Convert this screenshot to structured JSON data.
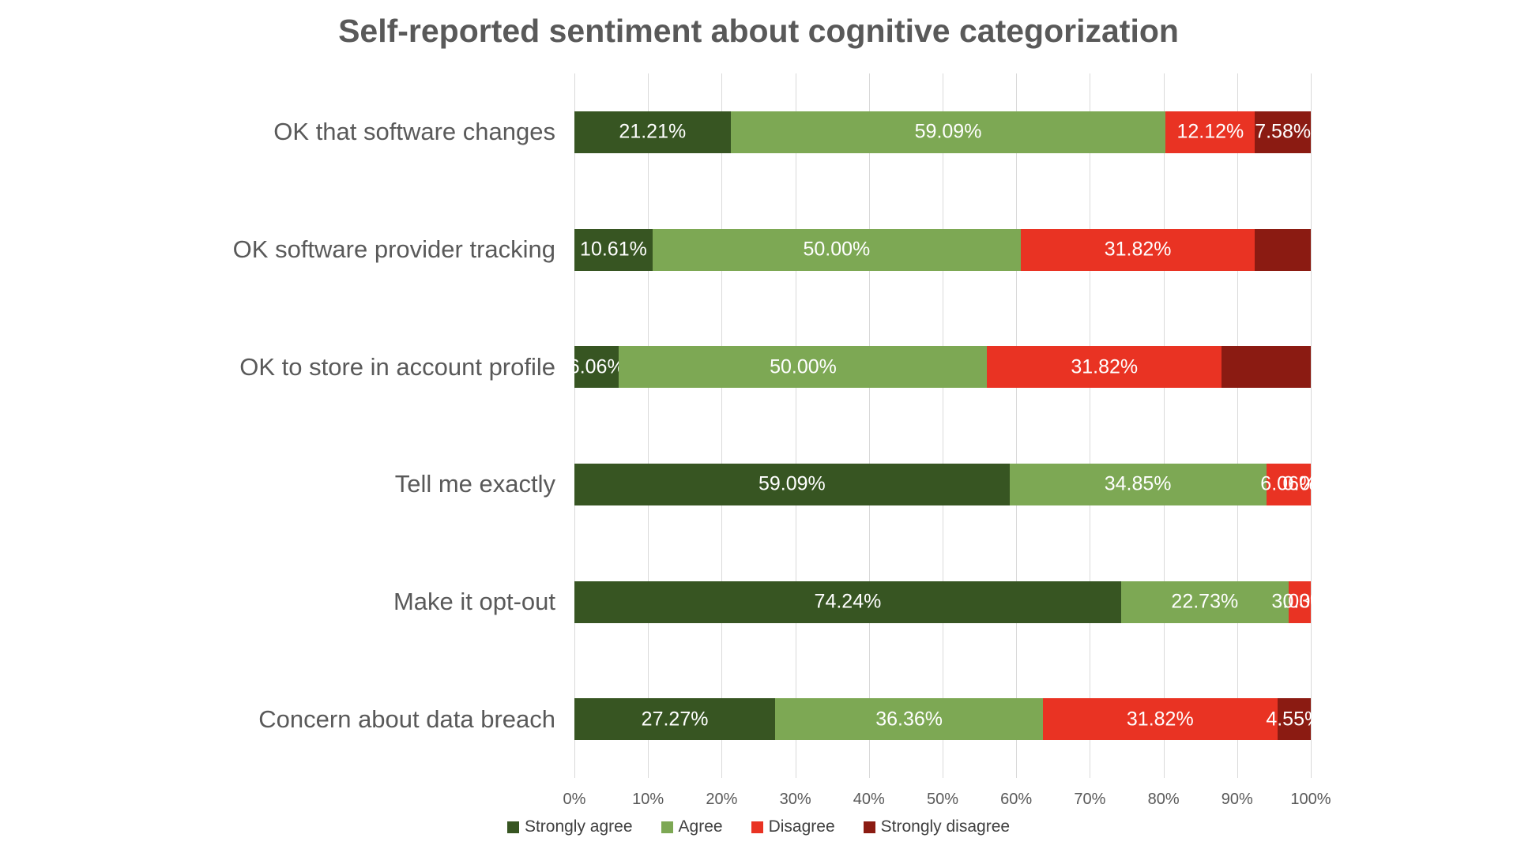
{
  "chart": {
    "title": "Self-reported sentiment about cognitive categorization"
  },
  "colors": {
    "strongly_agree": "#375522",
    "agree": "#7DA854",
    "disagree": "#E93323",
    "strongly_disagree": "#8B1B12",
    "gridline": "#D9D9D9",
    "axis_text": "#595959",
    "category_text": "#595959",
    "title_text": "#595959",
    "legend_text": "#404040",
    "bar_label_text": "#FFFFFF",
    "background": "#FFFFFF"
  },
  "chart_data": {
    "type": "bar",
    "orientation": "horizontal",
    "stacked": true,
    "stacked_total": 100,
    "title": "Self-reported sentiment about cognitive categorization",
    "grid": true,
    "categories": [
      "OK that software changes",
      "OK software provider tracking",
      "OK to store in account profile",
      "Tell me exactly",
      "Make it opt-out",
      "Concern about data breach"
    ],
    "series": [
      {
        "name": "Strongly agree",
        "color": "#375522",
        "values": [
          21.21,
          10.61,
          6.06,
          59.09,
          74.24,
          27.27
        ],
        "labels": [
          "21.21%",
          "10.61%",
          "6.06%",
          "59.09%",
          "74.24%",
          "27.27%"
        ]
      },
      {
        "name": "Agree",
        "color": "#7DA854",
        "values": [
          59.09,
          50.0,
          50.0,
          34.85,
          22.73,
          36.36
        ],
        "labels": [
          "59.09%",
          "50.00%",
          "50.00%",
          "34.85%",
          "22.73%",
          "36.36%"
        ]
      },
      {
        "name": "Disagree",
        "color": "#E93323",
        "values": [
          12.12,
          31.82,
          31.82,
          6.06,
          3.03,
          31.82
        ],
        "labels": [
          "12.12%",
          "31.82%",
          "31.82%",
          "6.06%",
          "3.03%",
          "31.82%"
        ]
      },
      {
        "name": "Strongly disagree",
        "color": "#8B1B12",
        "values": [
          7.58,
          7.58,
          12.12,
          0.0,
          0.0,
          4.55
        ],
        "labels": [
          "7.58%",
          "",
          "",
          "0.00%",
          "0.00%",
          "4.55%"
        ]
      }
    ],
    "x_axis": {
      "min": 0,
      "max": 100,
      "tick_step": 10,
      "ticks": [
        "0%",
        "10%",
        "20%",
        "30%",
        "40%",
        "50%",
        "60%",
        "70%",
        "80%",
        "90%",
        "100%"
      ]
    },
    "legend": {
      "position": "bottom",
      "items": [
        "Strongly agree",
        "Agree",
        "Disagree",
        "Strongly disagree"
      ]
    }
  }
}
